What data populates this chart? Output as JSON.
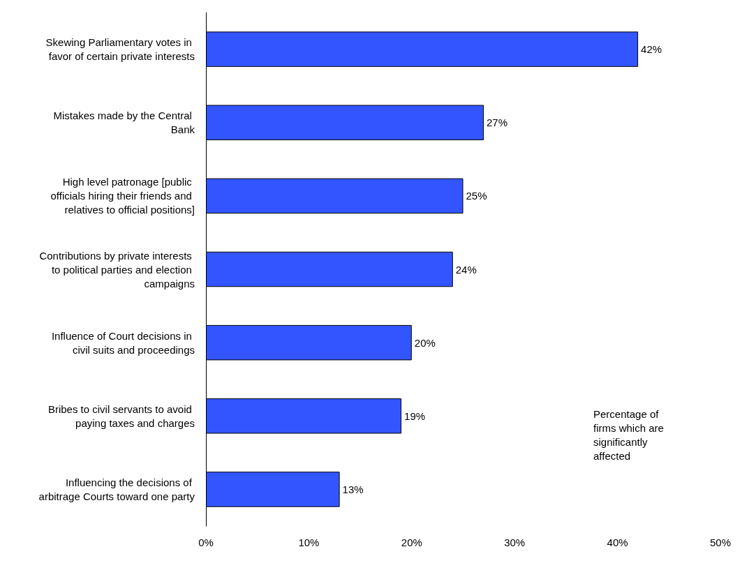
{
  "chart_data": {
    "type": "bar",
    "orientation": "horizontal",
    "categories": [
      "Skewing Parliamentary votes in favor of certain private interests",
      "Mistakes made by the Central Bank",
      "High level patronage [public officials hiring their friends and relatives to official positions]",
      "Contributions by private interests to political parties and election campaigns",
      "Influence of Court decisions in civil suits and proceedings",
      "Bribes to civil servants to avoid paying taxes and charges",
      "Influencing the decisions of arbitrage Courts toward one party"
    ],
    "values": [
      42,
      27,
      25,
      24,
      20,
      19,
      13
    ],
    "value_labels": [
      "42%",
      "27%",
      "25%",
      "24%",
      "20%",
      "19%",
      "13%"
    ],
    "color": "#3355ff",
    "xlim": [
      0,
      50
    ],
    "xticks": [
      {
        "value": 0,
        "label": "0%"
      },
      {
        "value": 10,
        "label": "10%"
      },
      {
        "value": 20,
        "label": "20%"
      },
      {
        "value": 30,
        "label": "30%"
      },
      {
        "value": 40,
        "label": "40%"
      },
      {
        "value": 50,
        "label": "50%"
      }
    ],
    "grid": false,
    "annotations": [
      "Percentage of firms which are significantly affected"
    ]
  }
}
